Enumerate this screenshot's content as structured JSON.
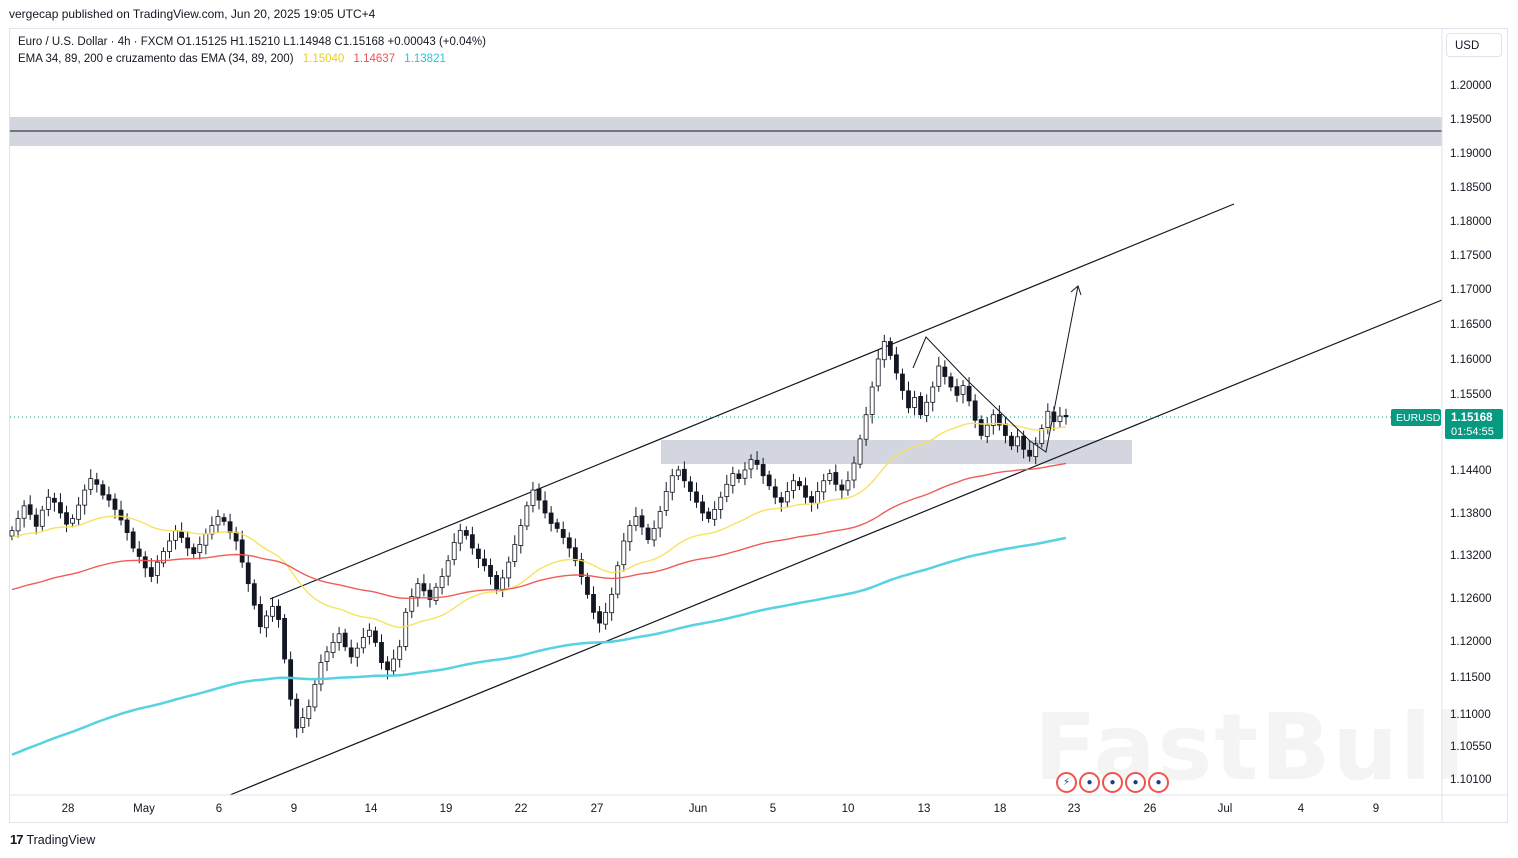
{
  "header": {
    "published": "vergecap published on TradingView.com, Jun 20, 2025 19:05 UTC+4"
  },
  "legend": {
    "symbol_line": "Euro / U.S. Dollar · 4h · FXCM  O1.15125  H1.15210  L1.14948  C1.15168  +0.00043 (+0.04%)",
    "ema_label": "EMA 34, 89, 200 e cruzamento das EMA (34, 89, 200)",
    "ema34": "1.15040",
    "ema89": "1.14637",
    "ema200": "1.13821"
  },
  "currency_button": "USD",
  "colors": {
    "up": "#131722",
    "down": "#131722",
    "ema34": "#f5e15a",
    "ema89": "#ef5350",
    "ema200": "#4dd0e1",
    "price_tag": "#089981",
    "zone": "#d1d4dc"
  },
  "footer": {
    "brand": "TradingView"
  },
  "watermark": "FastBull",
  "icons": [
    "tradingview-logo-icon",
    "economic-event-icon"
  ],
  "chart_data": {
    "type": "candlestick",
    "symbol": "EURUSD",
    "timeframe": "4h",
    "last_price": "1.15168",
    "countdown": "01:54:55",
    "y_ticks": [
      "1.20000",
      "1.19500",
      "1.19000",
      "1.18500",
      "1.18000",
      "1.17500",
      "1.17000",
      "1.16500",
      "1.16000",
      "1.15500",
      "1.14400",
      "1.13800",
      "1.13200",
      "1.12600",
      "1.12000",
      "1.11500",
      "1.11000",
      "1.10550",
      "1.10100"
    ],
    "x_ticks": [
      "28",
      "May",
      "6",
      "9",
      "14",
      "19",
      "22",
      "27",
      "Jun",
      "5",
      "10",
      "13",
      "18",
      "23",
      "26",
      "Jul",
      "4",
      "9"
    ],
    "closes": [
      1.1355,
      1.1372,
      1.139,
      1.1378,
      1.1361,
      1.1384,
      1.1402,
      1.1395,
      1.138,
      1.1364,
      1.1372,
      1.1391,
      1.1412,
      1.1428,
      1.142,
      1.1405,
      1.1398,
      1.1385,
      1.137,
      1.1352,
      1.133,
      1.1318,
      1.1302,
      1.129,
      1.131,
      1.1325,
      1.134,
      1.1355,
      1.1345,
      1.133,
      1.1322,
      1.1335,
      1.135,
      1.1362,
      1.1375,
      1.1368,
      1.1352,
      1.134,
      1.131,
      1.128,
      1.125,
      1.122,
      1.1235,
      1.1248,
      1.123,
      1.1175,
      1.112,
      1.108,
      1.1095,
      1.111,
      1.114,
      1.117,
      1.1185,
      1.1198,
      1.121,
      1.1192,
      1.1178,
      1.119,
      1.1205,
      1.1215,
      1.1198,
      1.117,
      1.116,
      1.1175,
      1.1192,
      1.124,
      1.1262,
      1.128,
      1.127,
      1.1258,
      1.1275,
      1.129,
      1.1312,
      1.1338,
      1.1355,
      1.1348,
      1.133,
      1.1315,
      1.1305,
      1.129,
      1.1272,
      1.1288,
      1.131,
      1.1335,
      1.1362,
      1.139,
      1.1412,
      1.1398,
      1.138,
      1.1365,
      1.1358,
      1.1345,
      1.133,
      1.1312,
      1.129,
      1.1265,
      1.124,
      1.1225,
      1.124,
      1.1265,
      1.1305,
      1.134,
      1.1362,
      1.1375,
      1.136,
      1.1342,
      1.1358,
      1.1382,
      1.141,
      1.1432,
      1.144,
      1.1425,
      1.141,
      1.1395,
      1.138,
      1.1372,
      1.1385,
      1.1402,
      1.142,
      1.1435,
      1.1428,
      1.144,
      1.1455,
      1.1448,
      1.1432,
      1.1418,
      1.1402,
      1.1395,
      1.141,
      1.1425,
      1.1418,
      1.1402,
      1.1395,
      1.141,
      1.1425,
      1.1435,
      1.142,
      1.1412,
      1.1425,
      1.145,
      1.1485,
      1.152,
      1.156,
      1.16,
      1.1625,
      1.1605,
      1.158,
      1.1555,
      1.153,
      1.1545,
      1.152,
      1.1538,
      1.156,
      1.159,
      1.1575,
      1.156,
      1.1548,
      1.1562,
      1.154,
      1.1512,
      1.149,
      1.1505,
      1.152,
      1.1505,
      1.149,
      1.1475,
      1.1488,
      1.147,
      1.146,
      1.1478,
      1.15,
      1.1525,
      1.151,
      1.1518,
      1.1517
    ]
  }
}
